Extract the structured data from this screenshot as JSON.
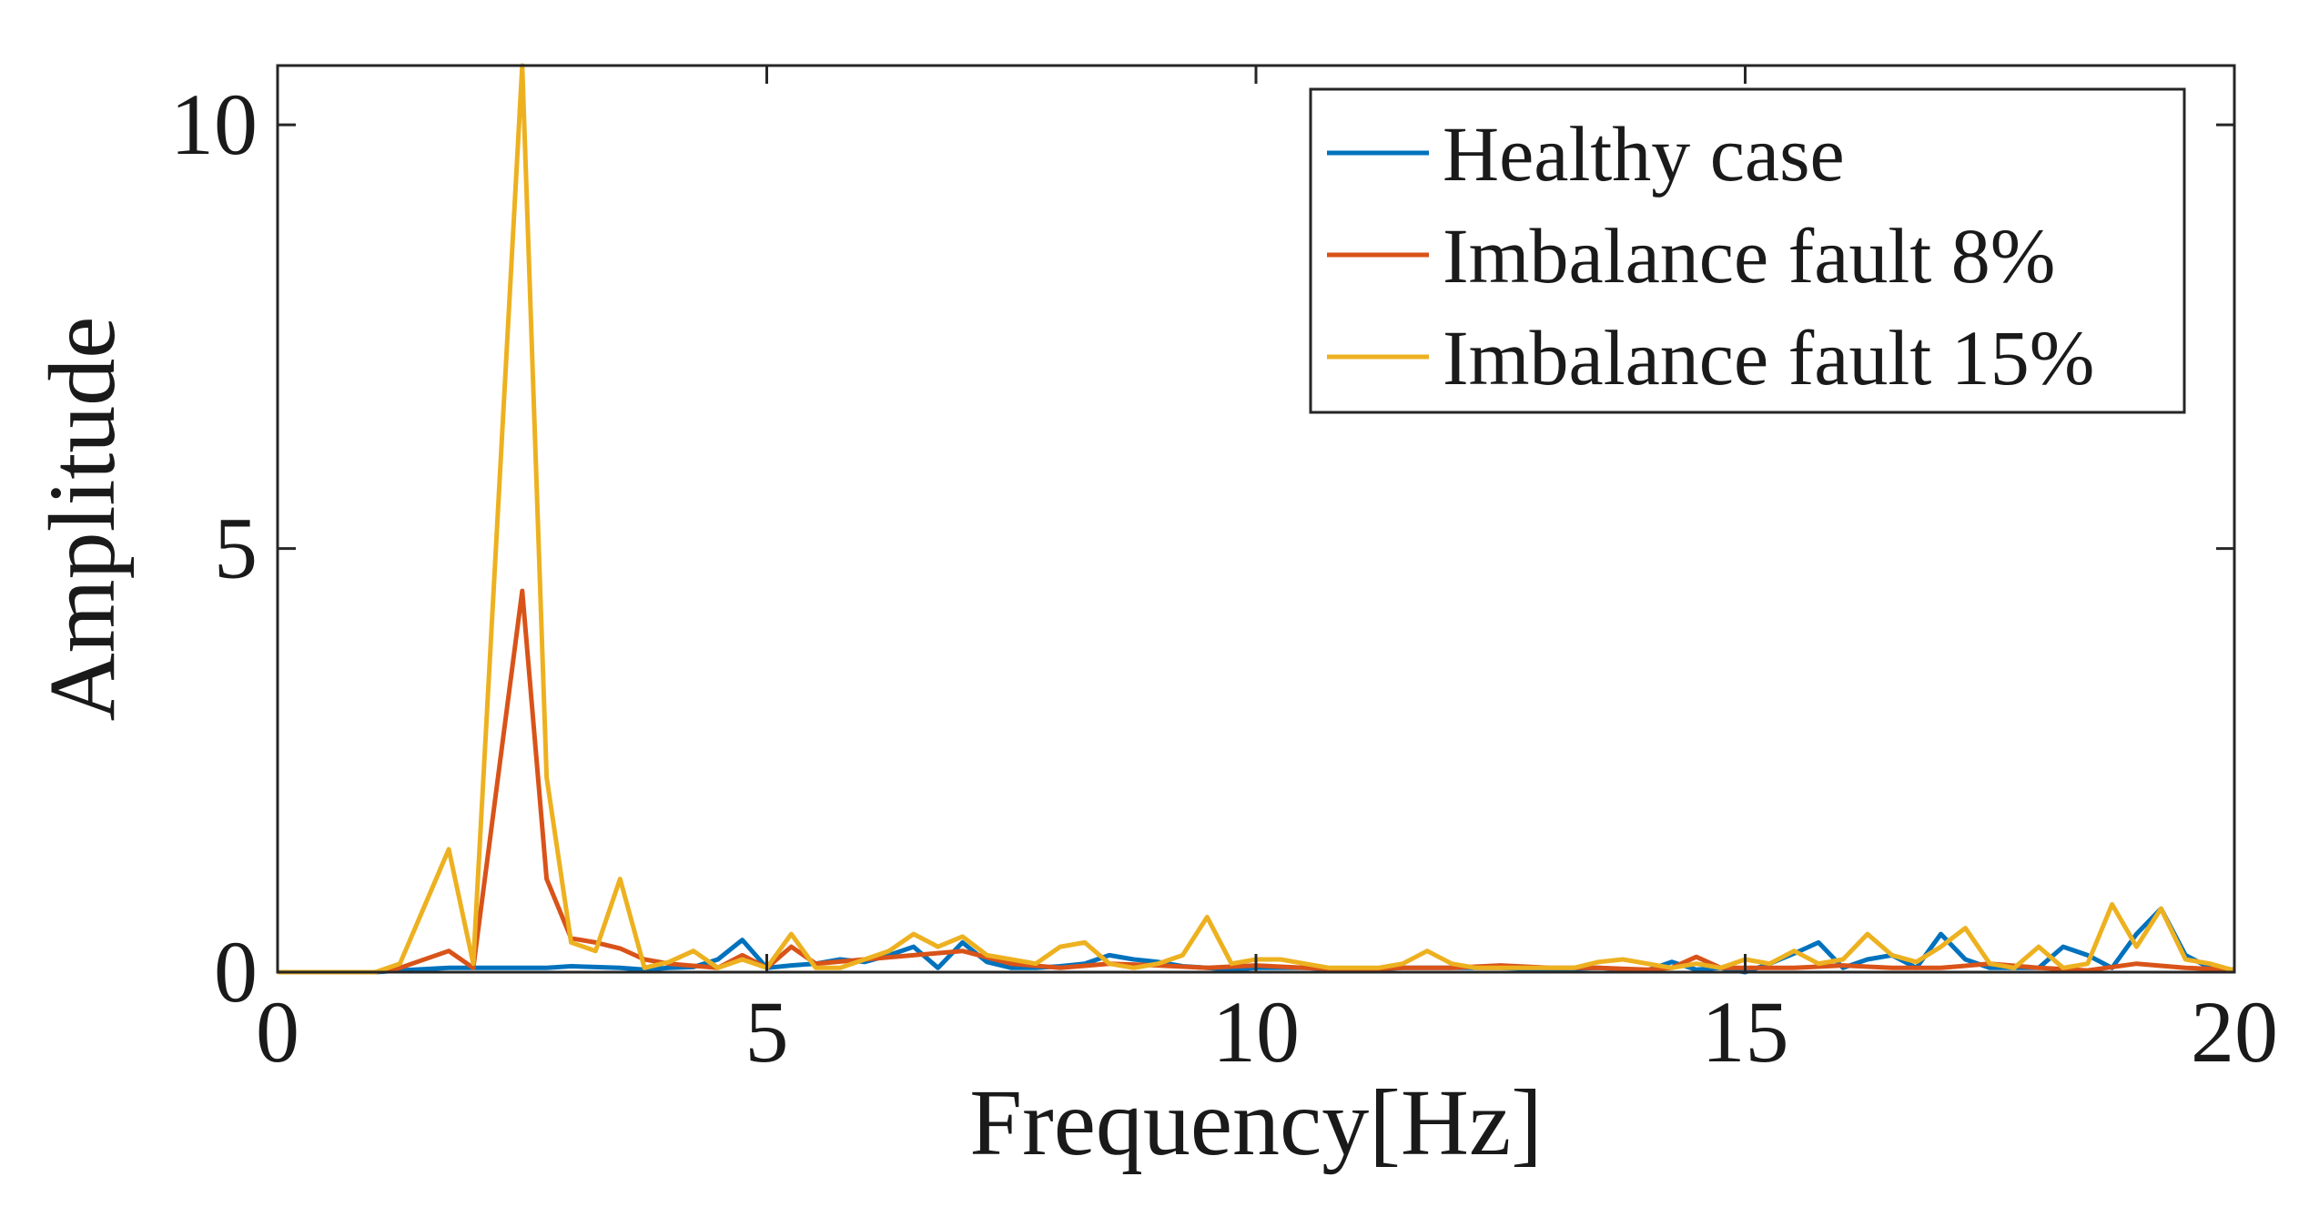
{
  "chart_data": {
    "type": "line",
    "title": "",
    "xlabel": "Frequency[Hz]",
    "ylabel": "Amplitude",
    "xlim": [
      0,
      20
    ],
    "ylim": [
      0,
      10.7
    ],
    "xticks": [
      "0",
      "5",
      "10",
      "15",
      "20"
    ],
    "yticks": [
      "0",
      "5",
      "10"
    ],
    "grid": false,
    "legend_position": "top-right",
    "series": [
      {
        "name": "Healthy case",
        "color": "#0072BD",
        "x": [
          0,
          1,
          1.25,
          1.75,
          2,
          2.5,
          2.75,
          3,
          3.25,
          3.5,
          3.75,
          4,
          4.25,
          4.5,
          4.75,
          5,
          5.25,
          5.5,
          5.75,
          6,
          6.25,
          6.5,
          6.75,
          7,
          7.25,
          7.5,
          7.75,
          8,
          8.25,
          8.5,
          8.75,
          9,
          9.25,
          9.5,
          9.75,
          10,
          10.5,
          11,
          11.5,
          12,
          12.5,
          13,
          13.5,
          14,
          14.25,
          14.5,
          14.75,
          15,
          15.25,
          15.5,
          15.75,
          16,
          16.25,
          16.5,
          16.75,
          17,
          17.25,
          17.5,
          17.75,
          18,
          18.25,
          18.5,
          18.75,
          19,
          19.25,
          19.5,
          19.75,
          20
        ],
        "y": [
          0,
          0,
          0.02,
          0.05,
          0.05,
          0.05,
          0.05,
          0.07,
          0.06,
          0.05,
          0.03,
          0.05,
          0.06,
          0.15,
          0.38,
          0.05,
          0.08,
          0.1,
          0.15,
          0.12,
          0.2,
          0.3,
          0.05,
          0.35,
          0.12,
          0.05,
          0.05,
          0.07,
          0.1,
          0.2,
          0.15,
          0.12,
          0.07,
          0.05,
          0.03,
          0.05,
          0.05,
          0.02,
          0.05,
          0.05,
          0.05,
          0.03,
          0.05,
          0.02,
          0.12,
          0.03,
          0.05,
          0.0,
          0.1,
          0.22,
          0.35,
          0.05,
          0.15,
          0.2,
          0.05,
          0.45,
          0.15,
          0.05,
          0.05,
          0.05,
          0.3,
          0.2,
          0.05,
          0.45,
          0.75,
          0.2,
          0.05,
          0.02
        ]
      },
      {
        "name": "Imbalance fault 8%",
        "color": "#D95319",
        "x": [
          0,
          1,
          1.25,
          1.75,
          2,
          2.5,
          2.75,
          3,
          3.25,
          3.5,
          3.75,
          4,
          4.5,
          4.75,
          5,
          5.25,
          5.5,
          6,
          6.5,
          7,
          7.5,
          8,
          8.5,
          9,
          9.5,
          10,
          10.5,
          11,
          11.5,
          12,
          12.5,
          13,
          13.5,
          14,
          14.25,
          14.5,
          14.75,
          15,
          15.5,
          16,
          16.5,
          17,
          17.5,
          18,
          18.5,
          19,
          19.5,
          20
        ],
        "y": [
          0,
          0,
          0.05,
          0.25,
          0.05,
          4.5,
          1.1,
          0.4,
          0.35,
          0.28,
          0.15,
          0.1,
          0.05,
          0.2,
          0.05,
          0.3,
          0.1,
          0.15,
          0.2,
          0.25,
          0.1,
          0.05,
          0.1,
          0.08,
          0.05,
          0.08,
          0.05,
          0.03,
          0.05,
          0.05,
          0.08,
          0.05,
          0.05,
          0.03,
          0.05,
          0.18,
          0.05,
          0.05,
          0.05,
          0.08,
          0.05,
          0.05,
          0.1,
          0.05,
          0.02,
          0.1,
          0.05,
          0.03
        ]
      },
      {
        "name": "Imbalance fault 15%",
        "color": "#EDB120",
        "x": [
          0,
          1,
          1.25,
          1.75,
          2,
          2.5,
          2.75,
          3,
          3.25,
          3.5,
          3.75,
          4,
          4.25,
          4.5,
          4.75,
          5,
          5.25,
          5.5,
          5.75,
          6,
          6.25,
          6.5,
          6.75,
          7,
          7.25,
          7.5,
          7.75,
          8,
          8.25,
          8.5,
          8.75,
          9,
          9.25,
          9.5,
          9.75,
          10,
          10.25,
          10.5,
          10.75,
          11,
          11.25,
          11.5,
          11.75,
          12,
          12.25,
          12.5,
          12.75,
          13,
          13.25,
          13.5,
          13.75,
          14,
          14.25,
          14.5,
          14.75,
          15,
          15.25,
          15.5,
          15.75,
          16,
          16.25,
          16.5,
          16.75,
          17,
          17.25,
          17.5,
          17.75,
          18,
          18.25,
          18.5,
          18.75,
          19,
          19.25,
          19.5,
          19.75,
          20
        ],
        "y": [
          0,
          0,
          0.1,
          1.45,
          0.1,
          10.7,
          2.3,
          0.35,
          0.25,
          1.1,
          0.05,
          0.12,
          0.25,
          0.05,
          0.15,
          0.05,
          0.45,
          0.05,
          0.05,
          0.15,
          0.25,
          0.45,
          0.3,
          0.42,
          0.2,
          0.15,
          0.1,
          0.3,
          0.35,
          0.1,
          0.05,
          0.1,
          0.2,
          0.65,
          0.1,
          0.15,
          0.15,
          0.1,
          0.05,
          0.05,
          0.05,
          0.1,
          0.25,
          0.1,
          0.05,
          0.05,
          0.05,
          0.05,
          0.05,
          0.12,
          0.15,
          0.1,
          0.05,
          0.1,
          0.05,
          0.15,
          0.1,
          0.25,
          0.1,
          0.15,
          0.45,
          0.2,
          0.12,
          0.3,
          0.52,
          0.1,
          0.05,
          0.3,
          0.05,
          0.1,
          0.8,
          0.3,
          0.75,
          0.15,
          0.1,
          0.02
        ]
      }
    ]
  }
}
